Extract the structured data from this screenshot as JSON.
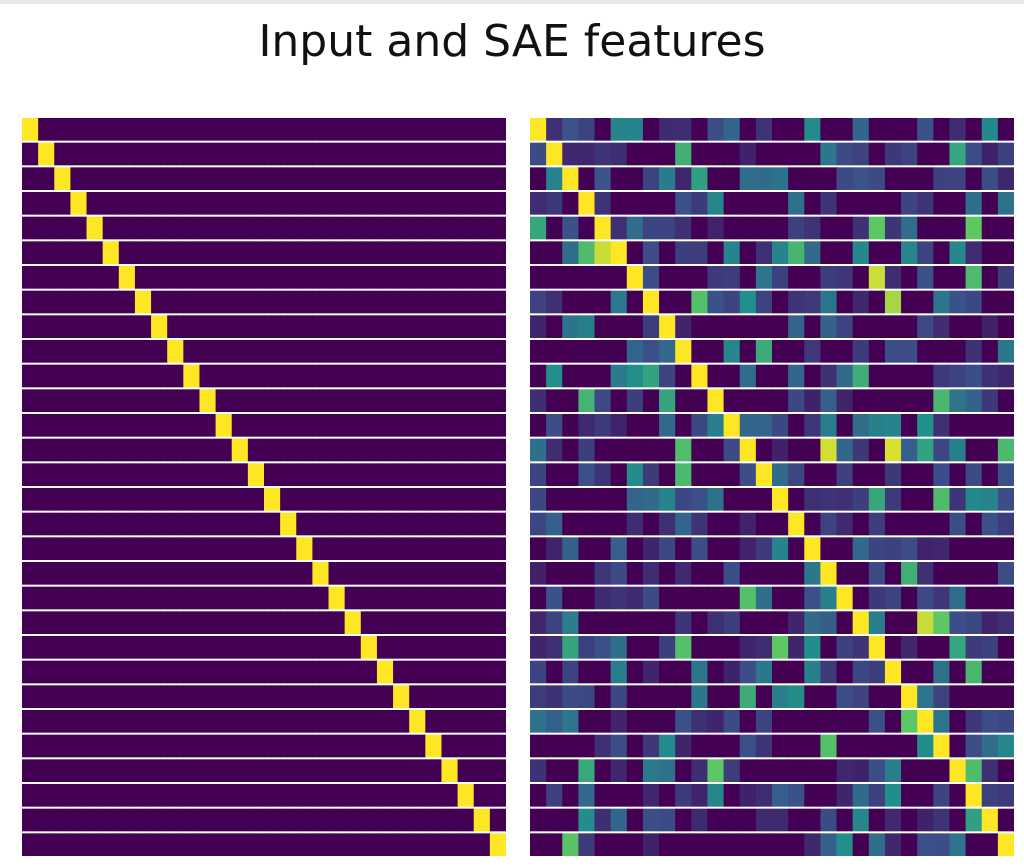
{
  "title": "Input and SAE features",
  "colors": {
    "background": "#ffffff",
    "row_separator": "#ffffff",
    "colormap": [
      "#440154",
      "#3b528b",
      "#21918c",
      "#5ec962",
      "#fde725"
    ]
  },
  "chart_data": [
    {
      "type": "heatmap",
      "name": "input",
      "title": "",
      "rows": 30,
      "cols": 30,
      "pattern": "identity",
      "value_range": [
        0,
        1
      ]
    },
    {
      "type": "heatmap",
      "name": "sae_features",
      "title": "",
      "rows": 30,
      "cols": 30,
      "pattern": "identity_dominant_with_noise",
      "dominant_value": 1.0,
      "value_range": [
        0,
        1
      ]
    }
  ]
}
